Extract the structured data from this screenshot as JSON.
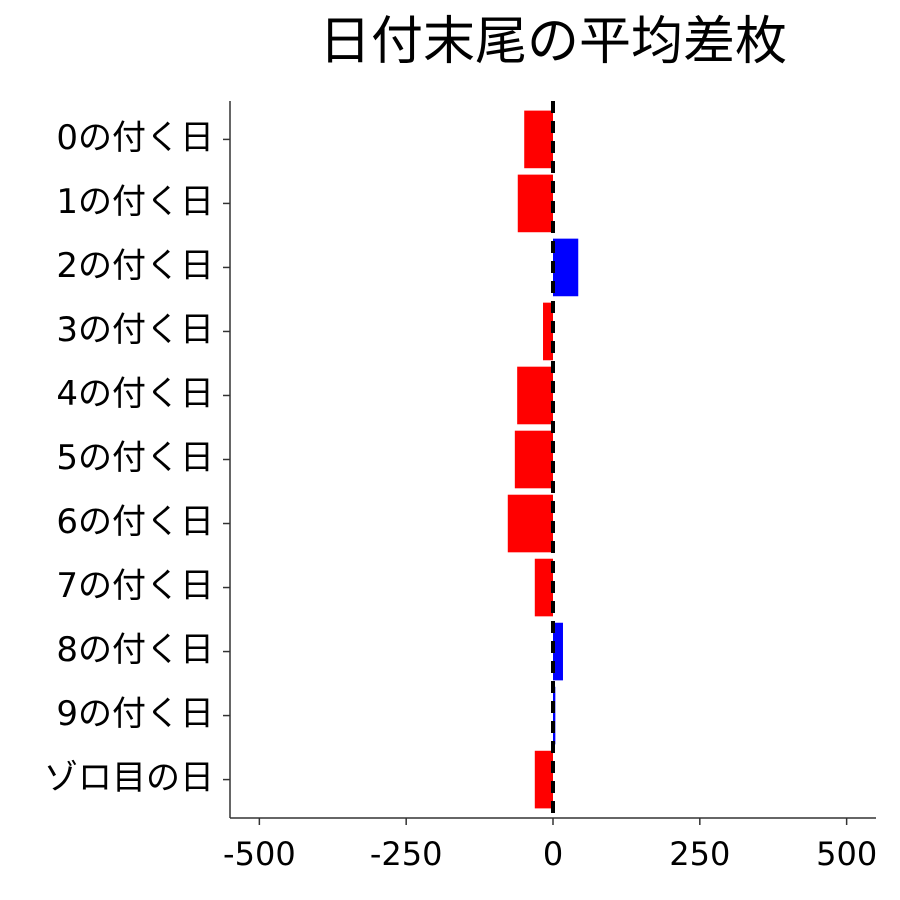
{
  "chart_data": {
    "type": "barh",
    "title": "日付末尾の平均差枚",
    "categories": [
      "0の付く日",
      "1の付く日",
      "2の付く日",
      "3の付く日",
      "4の付く日",
      "5の付く日",
      "6の付く日",
      "7の付く日",
      "8の付く日",
      "9の付く日",
      "ゾロ目の日"
    ],
    "values": [
      -49,
      -60,
      43,
      -17,
      -61,
      -65,
      -77,
      -31,
      17,
      4,
      -31
    ],
    "colors": [
      "#ff0000",
      "#ff0000",
      "#0000ff",
      "#ff0000",
      "#ff0000",
      "#ff0000",
      "#ff0000",
      "#ff0000",
      "#0000ff",
      "#0000ff",
      "#ff0000"
    ],
    "xlim": [
      -550,
      550
    ],
    "xticks": [
      -500,
      -250,
      0,
      250,
      500
    ],
    "vline": 0
  }
}
